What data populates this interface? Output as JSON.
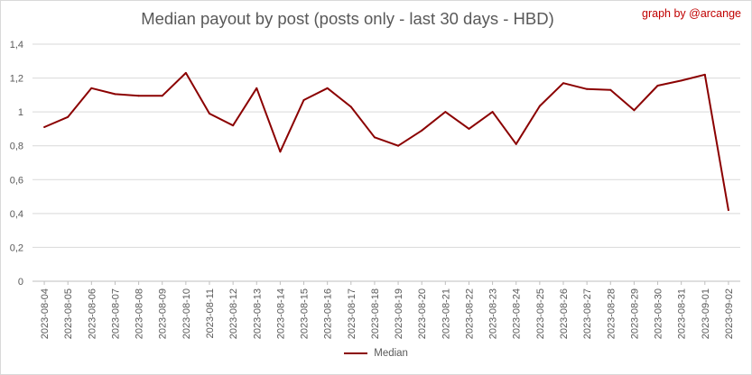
{
  "chart_data": {
    "type": "line",
    "title": "Median payout by post (posts only - last 30 days - HBD)",
    "credit": "graph by @arcange",
    "ylim": [
      0,
      1.4
    ],
    "yticks": [
      "0",
      "0,2",
      "0,4",
      "0,6",
      "0,8",
      "1",
      "1,2",
      "1,4"
    ],
    "grid": true,
    "legend_position": "bottom",
    "series_color": "#8b0000",
    "categories": [
      "2023-08-04",
      "2023-08-05",
      "2023-08-06",
      "2023-08-07",
      "2023-08-08",
      "2023-08-09",
      "2023-08-10",
      "2023-08-11",
      "2023-08-12",
      "2023-08-13",
      "2023-08-14",
      "2023-08-15",
      "2023-08-16",
      "2023-08-17",
      "2023-08-18",
      "2023-08-19",
      "2023-08-20",
      "2023-08-21",
      "2023-08-22",
      "2023-08-23",
      "2023-08-24",
      "2023-08-25",
      "2023-08-26",
      "2023-08-27",
      "2023-08-28",
      "2023-08-29",
      "2023-08-30",
      "2023-08-31",
      "2023-09-01",
      "2023-09-02"
    ],
    "series": [
      {
        "name": "Median",
        "values": [
          0.91,
          0.97,
          1.14,
          1.105,
          1.095,
          1.095,
          1.23,
          0.99,
          0.92,
          1.14,
          0.765,
          1.07,
          1.14,
          1.03,
          0.85,
          0.8,
          0.89,
          1.0,
          0.9,
          1.0,
          0.81,
          1.035,
          1.17,
          1.135,
          1.13,
          1.01,
          1.155,
          1.185,
          1.22,
          0.42
        ]
      }
    ]
  }
}
